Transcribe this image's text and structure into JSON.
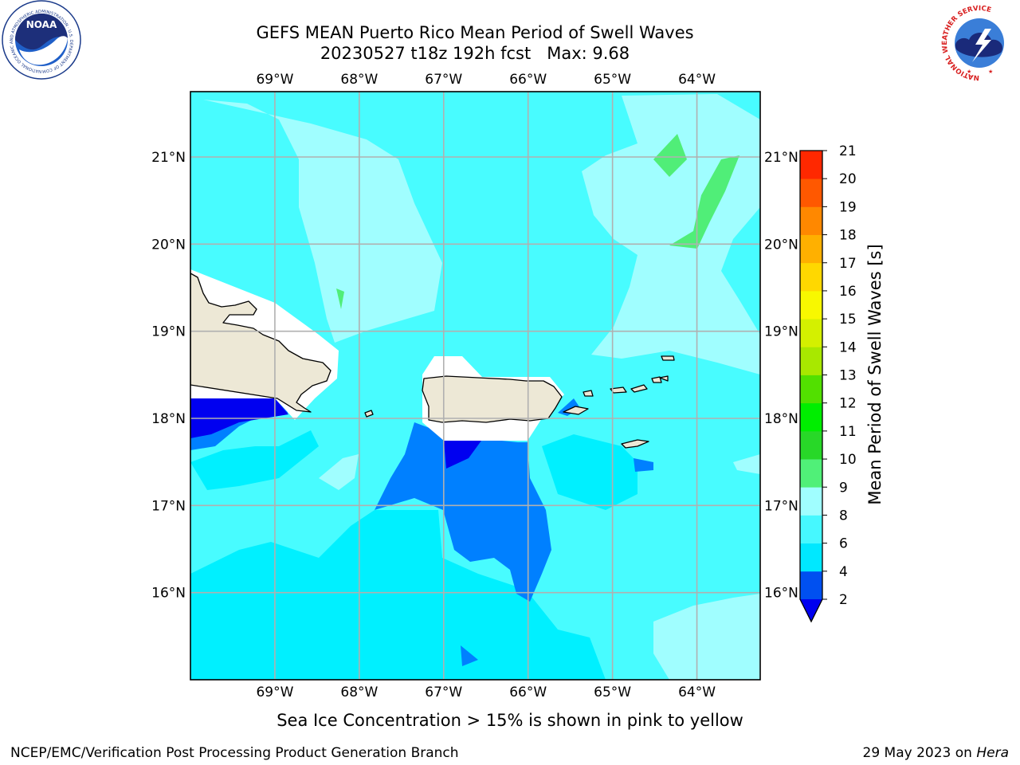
{
  "title_line1": "GEFS MEAN Puerto Rico Mean Period of Swell Waves",
  "title_line2": "20230527 t18z 192h fcst   Max: 9.68",
  "noaa_logo": {
    "text": "NOAA",
    "ring_text": "NATIONAL OCEANIC AND ATMOSPHERIC ADMINISTRATION · U.S. DEPARTMENT OF COMMERCE"
  },
  "nws_logo": {
    "ring_text": "NATIONAL WEATHER SERVICE"
  },
  "colorbar_label": "Mean Period of Swell Waves [s]",
  "subtitle": "Sea Ice Concentration > 15% is shown in pink to yellow",
  "footer_left": "NCEP/EMC/Verification Post Processing Product Generation Branch",
  "footer_right_date": "29 May 2023 on ",
  "footer_right_host": "Hera",
  "chart_data": {
    "type": "heatmap",
    "projection": "lat-lon map, Puerto Rico region",
    "lon_range": [
      -70.0,
      -63.25
    ],
    "lat_range": [
      15.0,
      21.75
    ],
    "lon_ticks": [
      "69°W",
      "68°W",
      "67°W",
      "66°W",
      "65°W",
      "64°W"
    ],
    "lon_tick_values": [
      -69,
      -68,
      -67,
      -66,
      -65,
      -64
    ],
    "lat_ticks": [
      "21°N",
      "20°N",
      "19°N",
      "18°N",
      "17°N",
      "16°N"
    ],
    "lat_tick_values": [
      21,
      20,
      19,
      18,
      17,
      16
    ],
    "grid": true,
    "max_value": 9.68,
    "units": "s",
    "colorbar": {
      "levels": [
        2,
        4,
        6,
        8,
        9,
        10,
        11,
        12,
        13,
        14,
        15,
        16,
        17,
        18,
        19,
        20,
        21
      ],
      "tick_labels": [
        "2",
        "4",
        "6",
        "8",
        "9",
        "10",
        "11",
        "12",
        "13",
        "14",
        "15",
        "16",
        "17",
        "18",
        "19",
        "20",
        "21"
      ],
      "colors": [
        "#0050f0",
        "#00e8ff",
        "#46f8ff",
        "#a0feff",
        "#50f078",
        "#28d828",
        "#00ee00",
        "#52e000",
        "#a8e800",
        "#d4f000",
        "#f8f800",
        "#ffd800",
        "#ffb000",
        "#ff8800",
        "#ff5800",
        "#ff2800"
      ],
      "extend_min_color": "#0000f0",
      "extend_min_tip": true
    },
    "field_colors": {
      "lt2": "#0000f0",
      "c2_4": "#0080ff",
      "c4_6": "#00f0ff",
      "c6_8": "#48fcff",
      "c8_9": "#a0feff",
      "c9_10": "#50ee78",
      "land": "#ede8d6",
      "nodata": "#ffffff"
    },
    "regions": [
      {
        "level": "8-9 s",
        "area": "northern waters band from 21.5°N to 19°N between 68.7°W and 66.9°W"
      },
      {
        "level": "8-9 s",
        "area": "northeast waters east of 65.2°W"
      },
      {
        "level": "9-10 s",
        "area": "patches near 64.4°W 20.9°N and 64°W 20.3°N; small patch near 68.3°W 19.4°N"
      },
      {
        "level": "2-4 s",
        "area": "south of Puerto Rico, 67.7°W to 65.8°W, 18.1°N to 15.9°N"
      },
      {
        "level": "<2 s",
        "area": "off southwest Hispaniola and just south of western Puerto Rico"
      }
    ]
  }
}
